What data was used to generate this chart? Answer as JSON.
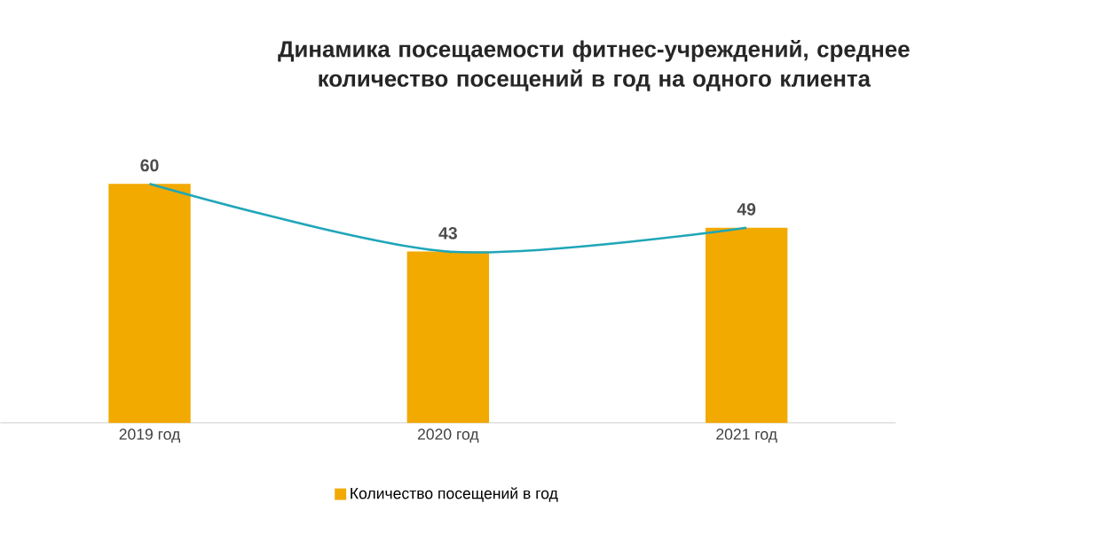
{
  "chart_data": {
    "type": "bar",
    "title": "Динамика посещаемости фитнес-учреждений, среднее количество посещений в год на одного клиента",
    "categories": [
      "2019 год",
      "2020 год",
      "2021 год"
    ],
    "series": [
      {
        "name": "Количество посещений в год",
        "color": "#f2a900",
        "values": [
          60,
          43,
          49
        ],
        "value_labels": [
          "60",
          "43",
          "49"
        ]
      },
      {
        "type": "line",
        "color": "#1fa6b8",
        "values": [
          60,
          43,
          49
        ]
      }
    ],
    "legend": "bottom"
  }
}
